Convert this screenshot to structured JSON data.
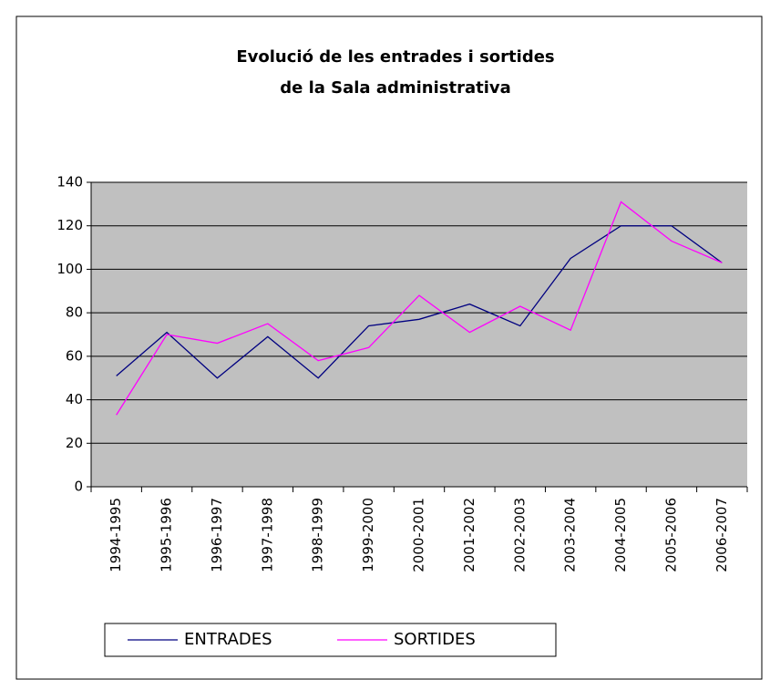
{
  "chart_data": {
    "type": "line",
    "title": [
      "Evolució de les entrades i sortides",
      "de la Sala administrativa"
    ],
    "categories": [
      "1994-1995",
      "1995-1996",
      "1996-1997",
      "1997-1998",
      "1998-1999",
      "1999-2000",
      "2000-2001",
      "2001-2002",
      "2002-2003",
      "2003-2004",
      "2004-2005",
      "2005-2006",
      "2006-2007"
    ],
    "series": [
      {
        "name": "ENTRADES",
        "color": "#000080",
        "values": [
          51,
          71,
          50,
          69,
          50,
          74,
          77,
          84,
          74,
          105,
          120,
          120,
          103
        ]
      },
      {
        "name": "SORTIDES",
        "color": "#ff00ff",
        "values": [
          33,
          70,
          66,
          75,
          58,
          64,
          88,
          71,
          83,
          72,
          131,
          113,
          103
        ]
      }
    ],
    "ylim": [
      0,
      140
    ],
    "yticks": [
      0,
      20,
      40,
      60,
      80,
      100,
      120,
      140
    ],
    "grid": true,
    "legend": "bottom"
  }
}
